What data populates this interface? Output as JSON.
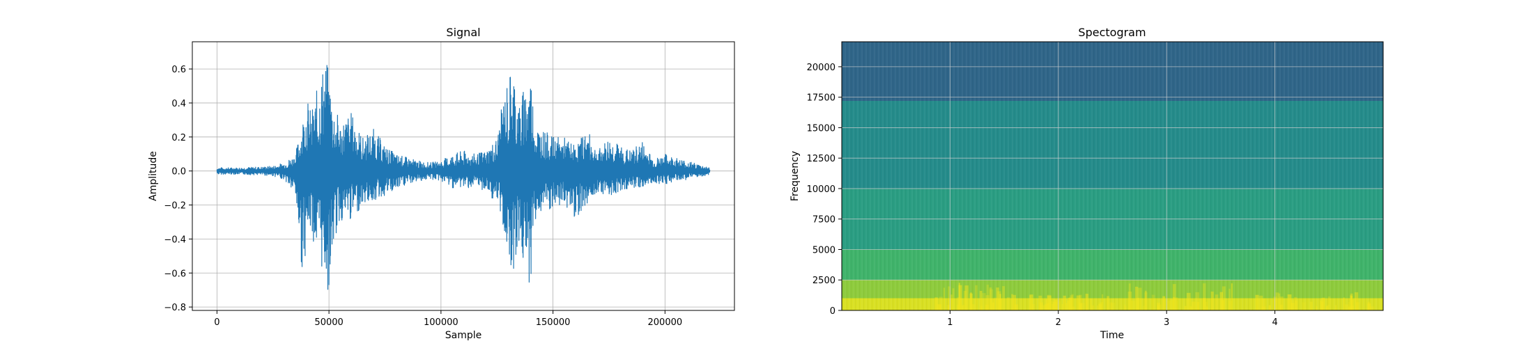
{
  "chart_data": [
    {
      "type": "line",
      "title": "Signal",
      "xlabel": "Sample",
      "ylabel": "Amplitude",
      "xlim": [
        -11000,
        231000
      ],
      "ylim": [
        -0.82,
        0.76
      ],
      "xticks": [
        0,
        50000,
        100000,
        150000,
        200000
      ],
      "xtick_labels": [
        "0",
        "50000",
        "100000",
        "150000",
        "200000"
      ],
      "yticks": [
        -0.8,
        -0.6,
        -0.4,
        -0.2,
        0.0,
        0.2,
        0.4,
        0.6
      ],
      "ytick_labels": [
        "−0.8",
        "−0.6",
        "−0.4",
        "−0.2",
        "0.0",
        "0.2",
        "0.4",
        "0.6"
      ],
      "grid": true,
      "color": "#1f77b4",
      "envelope": {
        "x": [
          0,
          10000,
          20000,
          25000,
          30000,
          35000,
          38000,
          40000,
          42000,
          45000,
          48000,
          50000,
          52000,
          55000,
          60000,
          65000,
          70000,
          75000,
          80000,
          85000,
          90000,
          95000,
          100000,
          105000,
          110000,
          115000,
          120000,
          125000,
          128000,
          130000,
          132000,
          135000,
          138000,
          140000,
          142000,
          145000,
          150000,
          155000,
          160000,
          165000,
          170000,
          175000,
          180000,
          185000,
          190000,
          195000,
          200000,
          205000,
          210000,
          215000,
          220000
        ],
        "upper": [
          0.02,
          0.02,
          0.025,
          0.03,
          0.05,
          0.1,
          0.3,
          0.45,
          0.35,
          0.5,
          0.68,
          0.6,
          0.4,
          0.3,
          0.35,
          0.2,
          0.25,
          0.15,
          0.1,
          0.08,
          0.06,
          0.05,
          0.06,
          0.1,
          0.12,
          0.1,
          0.12,
          0.2,
          0.45,
          0.55,
          0.66,
          0.4,
          0.55,
          0.6,
          0.3,
          0.25,
          0.2,
          0.2,
          0.15,
          0.25,
          0.12,
          0.2,
          0.15,
          0.12,
          0.18,
          0.07,
          0.1,
          0.08,
          0.06,
          0.04,
          0.02
        ],
        "lower": [
          -0.02,
          -0.02,
          -0.025,
          -0.03,
          -0.05,
          -0.15,
          -0.6,
          -0.45,
          -0.35,
          -0.55,
          -0.62,
          -0.74,
          -0.45,
          -0.3,
          -0.3,
          -0.2,
          -0.18,
          -0.15,
          -0.12,
          -0.08,
          -0.06,
          -0.05,
          -0.06,
          -0.1,
          -0.1,
          -0.1,
          -0.12,
          -0.2,
          -0.35,
          -0.5,
          -0.6,
          -0.45,
          -0.65,
          -0.67,
          -0.3,
          -0.25,
          -0.25,
          -0.2,
          -0.28,
          -0.2,
          -0.12,
          -0.15,
          -0.12,
          -0.1,
          -0.1,
          -0.07,
          -0.08,
          -0.06,
          -0.05,
          -0.04,
          -0.02
        ]
      }
    },
    {
      "type": "heatmap",
      "title": "Spectogram",
      "xlabel": "Time",
      "ylabel": "Frequency",
      "xlim": [
        0,
        5.0
      ],
      "ylim": [
        0,
        22050
      ],
      "xticks": [
        1,
        2,
        3,
        4
      ],
      "xtick_labels": [
        "1",
        "2",
        "3",
        "4"
      ],
      "yticks": [
        0,
        2500,
        5000,
        7500,
        10000,
        12500,
        15000,
        17500,
        20000
      ],
      "ytick_labels": [
        "0",
        "2500",
        "5000",
        "7500",
        "10000",
        "12500",
        "15000",
        "17500",
        "20000"
      ],
      "grid": true,
      "colormap": "viridis",
      "bands": [
        {
          "f0": 0,
          "f1": 1000,
          "color": "#d9e022"
        },
        {
          "f0": 1000,
          "f1": 2500,
          "color": "#8ecb3c"
        },
        {
          "f0": 2500,
          "f1": 5000,
          "color": "#3fb36a"
        },
        {
          "f0": 5000,
          "f1": 10000,
          "color": "#2a9d82"
        },
        {
          "f0": 10000,
          "f1": 17200,
          "color": "#248b8a"
        },
        {
          "f0": 17200,
          "f1": 22050,
          "color": "#2f6588"
        }
      ]
    }
  ]
}
